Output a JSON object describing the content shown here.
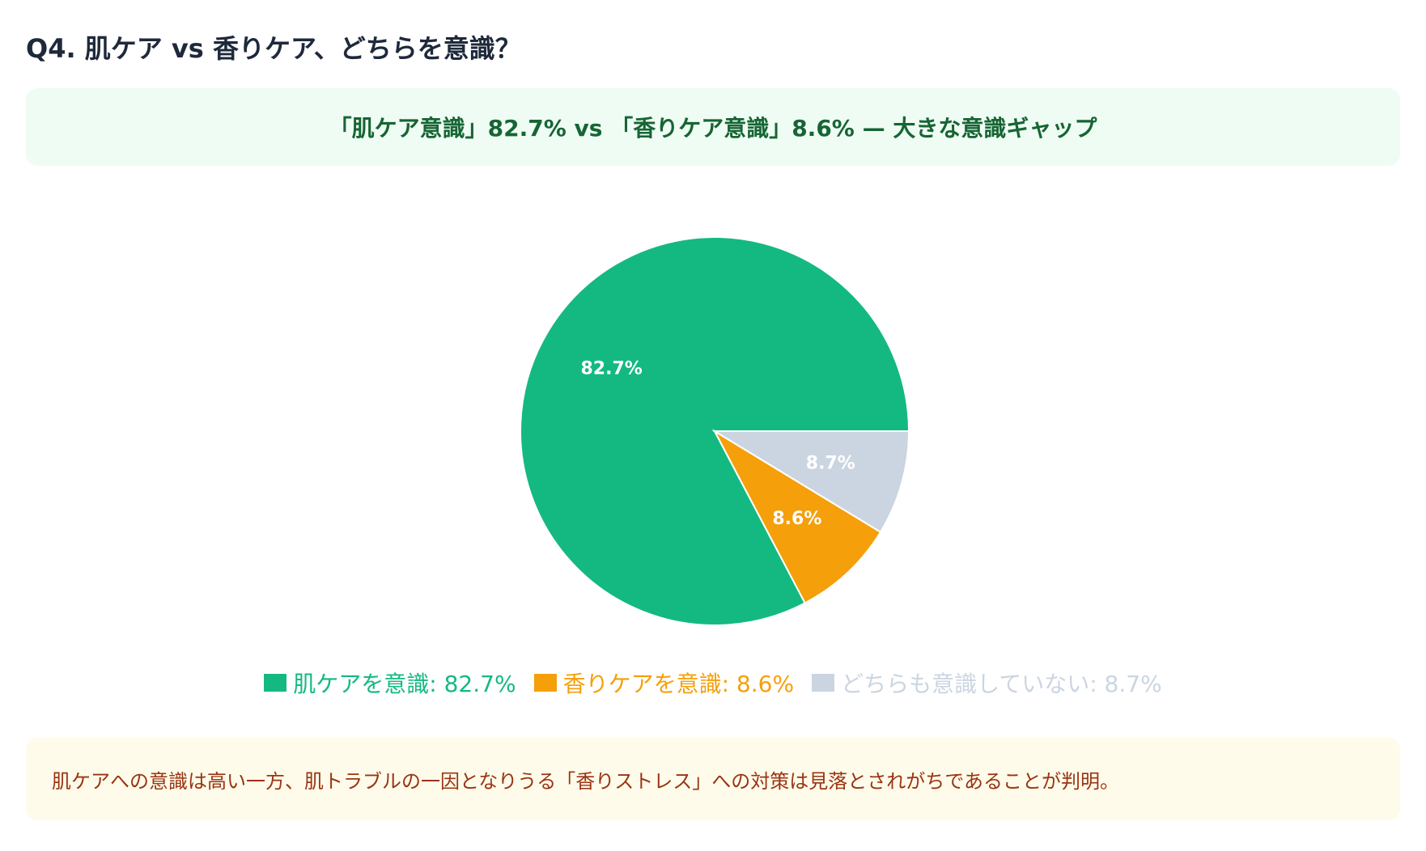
{
  "title": "Q4. 肌ケア vs 香りケア、どちらを意識？",
  "headline": "「肌ケア意識」82.7% vs 「香りケア意識」8.6% — 大きな意識ギャップ",
  "note": "肌ケアへの意識は高い一方、肌トラブルの一因となりうる「香りストレス」への対策は見落とされがちであることが判明。",
  "chart_data": {
    "type": "pie",
    "start_angle_deg": 90,
    "direction": "clockwise",
    "slices": [
      {
        "name": "肌ケアを意識",
        "value": 82.7,
        "label": "82.7%",
        "legend": "肌ケアを意識: 82.7%",
        "color": "#14b981"
      },
      {
        "name": "香りケアを意識",
        "value": 8.6,
        "label": "8.6%",
        "legend": "香りケアを意識: 8.6%",
        "color": "#f59f0b"
      },
      {
        "name": "どちらも意識していない",
        "value": 8.7,
        "label": "8.7%",
        "legend": "どちらも意識していない: 8.7%",
        "color": "#cbd5e1"
      }
    ],
    "legend_position": "bottom"
  }
}
